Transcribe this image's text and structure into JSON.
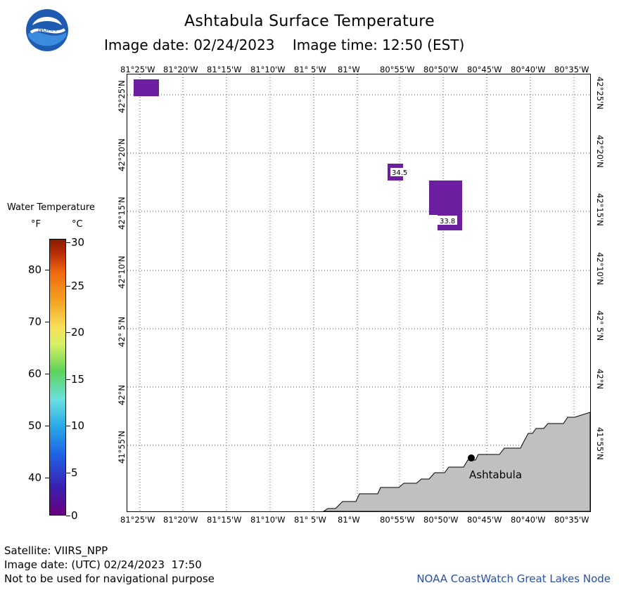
{
  "header": {
    "title": "Ashtabula Surface Temperature",
    "image_date_label": "Image date: 02/24/2023",
    "image_time_label": "Image time: 12:50 (EST)",
    "logo_text": "NOAA"
  },
  "map": {
    "lon_ticks": [
      "81°25'W",
      "81°20'W",
      "81°15'W",
      "81°10'W",
      "81° 5'W",
      "81°W",
      "80°55'W",
      "80°50'W",
      "80°45'W",
      "80°40'W",
      "80°35'W"
    ],
    "lat_ticks": [
      "42°25'N",
      "42°20'N",
      "42°15'N",
      "42°10'N",
      "42° 5'N",
      "42°N",
      "41°55'N"
    ],
    "sample_labels": [
      "34.5",
      "33.8"
    ],
    "place_label": "Ashtabula",
    "colors": {
      "water_purple": "#6b1fa0",
      "land": "#c0c0c0",
      "grid": "#555555"
    }
  },
  "legend": {
    "title": "Water Temperature",
    "unit_f": "°F",
    "unit_c": "°C",
    "f_ticks": [
      "80",
      "70",
      "60",
      "50",
      "40"
    ],
    "c_ticks": [
      "30",
      "25",
      "20",
      "15",
      "10",
      "5",
      "0"
    ]
  },
  "footer": {
    "satellite": "Satellite: VIIRS_NPP",
    "utc_date": "Image date: (UTC) 02/24/2023  17:50",
    "disclaimer": "Not to be used for navigational purpose",
    "credit": "NOAA CoastWatch Great Lakes Node"
  }
}
